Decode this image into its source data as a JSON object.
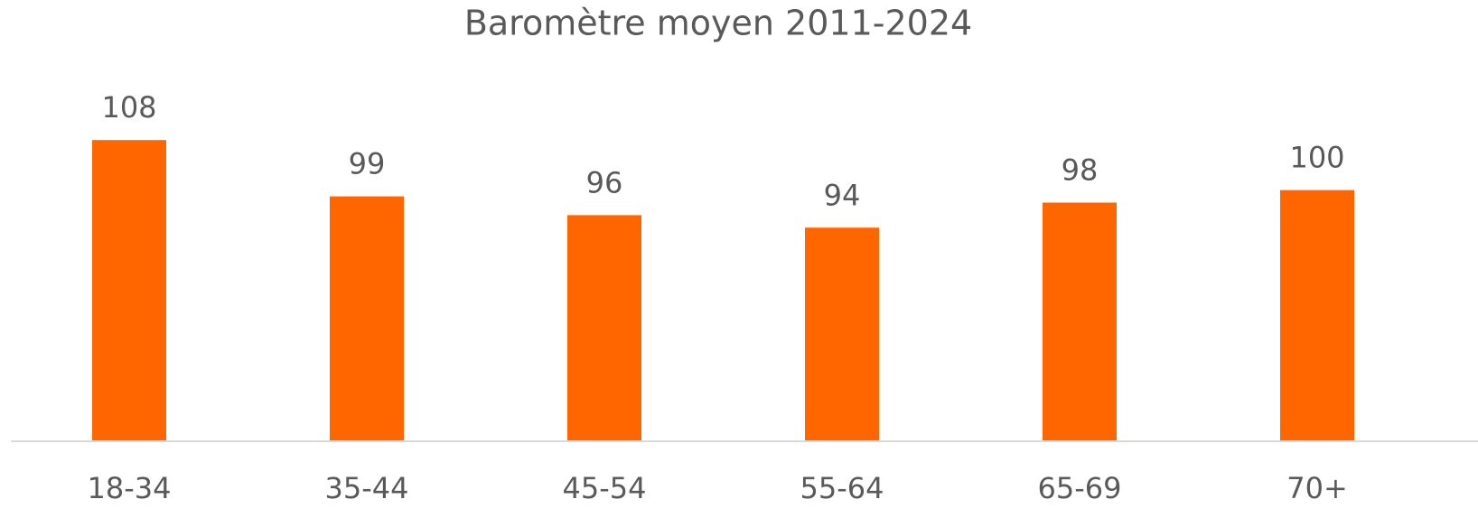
{
  "chart_data": {
    "type": "bar",
    "title": "Baromètre moyen 2011-2024",
    "categories": [
      "18-34",
      "35-44",
      "45-54",
      "55-64",
      "65-69",
      "70+"
    ],
    "values": [
      108,
      99,
      96,
      94,
      98,
      100
    ],
    "color": "#ff6600",
    "ylim": [
      60,
      120
    ]
  }
}
